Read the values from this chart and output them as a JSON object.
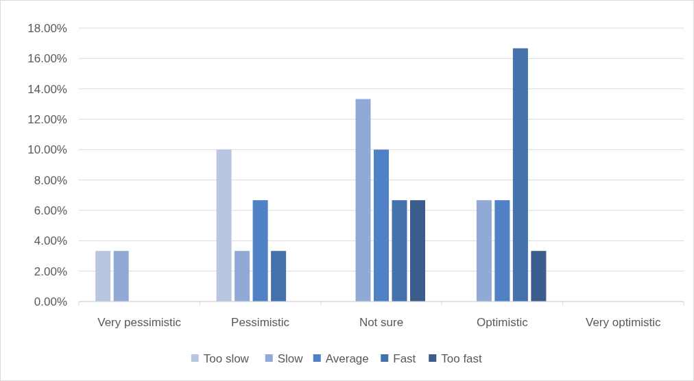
{
  "chart_data": {
    "type": "bar",
    "categories": [
      "Very pessimistic",
      "Pessimistic",
      "Not sure",
      "Optimistic",
      "Very optimistic"
    ],
    "series": [
      {
        "name": "Too slow",
        "color": "#b9c6e2",
        "values": [
          3.33,
          10,
          0,
          0,
          0
        ]
      },
      {
        "name": "Slow",
        "color": "#91a9d5",
        "values": [
          3.33,
          3.33,
          13.33,
          6.67,
          0
        ]
      },
      {
        "name": "Average",
        "color": "#4f81c4",
        "values": [
          0,
          6.67,
          10,
          6.67,
          0
        ]
      },
      {
        "name": "Fast",
        "color": "#4473ab",
        "values": [
          0,
          3.33,
          6.67,
          16.67,
          0
        ]
      },
      {
        "name": "Too fast",
        "color": "#3a5d8c",
        "values": [
          0,
          0,
          6.67,
          3.33,
          0
        ]
      }
    ],
    "ylim": [
      0,
      18
    ],
    "yticks": [
      {
        "value": 0,
        "label": "0.00%"
      },
      {
        "value": 2,
        "label": "2.00%"
      },
      {
        "value": 4,
        "label": "4.00%"
      },
      {
        "value": 6,
        "label": "6.00%"
      },
      {
        "value": 8,
        "label": "8.00%"
      },
      {
        "value": 10,
        "label": "10.00%"
      },
      {
        "value": 12,
        "label": "12.00%"
      },
      {
        "value": 14,
        "label": "14.00%"
      },
      {
        "value": 16,
        "label": "16.00%"
      },
      {
        "value": 18,
        "label": "18.00%"
      }
    ],
    "grid": "y",
    "legend": "bottom"
  }
}
